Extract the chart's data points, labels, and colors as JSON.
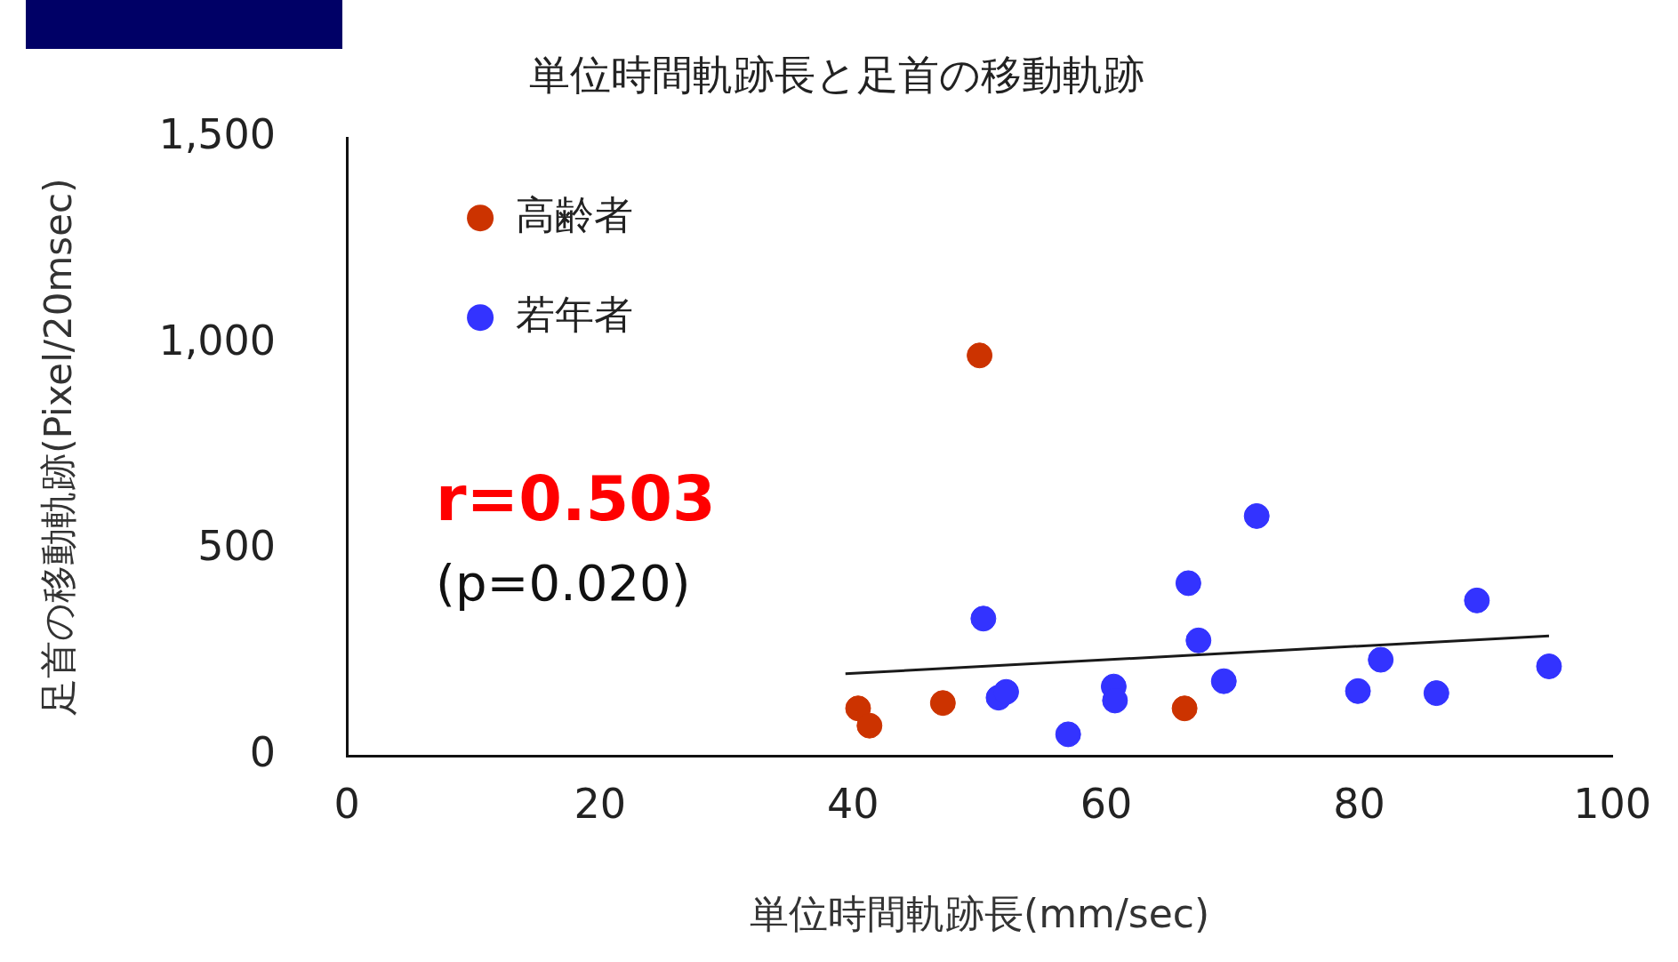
{
  "chart_data": {
    "type": "scatter",
    "title": "単位時間軌跡長と足首の移動軌跡",
    "xlabel": "単位時間軌跡長(mm/sec)",
    "ylabel": "足首の移動軌跡(Pixel/20msec)",
    "xlim": [
      0,
      100
    ],
    "xticks": [
      0,
      20,
      40,
      60,
      80,
      100
    ],
    "ylim": [
      0,
      1500
    ],
    "yticks": [
      {
        "value": 0,
        "label": "0"
      },
      {
        "value": 500,
        "label": "500"
      },
      {
        "value": 1000,
        "label": "1,000"
      },
      {
        "value": 1500,
        "label": "1,500"
      }
    ],
    "grid": false,
    "legend": "top left",
    "marker": "circle",
    "series": [
      {
        "name": "高齢者",
        "color": "#cc3300",
        "x": [
          40.4,
          41.3,
          47.1,
          50.0,
          66.2
        ],
        "values": [
          115,
          73,
          128,
          972,
          115
        ]
      },
      {
        "name": "若年者",
        "color": "#3333ff",
        "x": [
          50.3,
          51.5,
          52.1,
          57.0,
          60.6,
          60.7,
          66.5,
          67.3,
          69.3,
          71.9,
          79.9,
          81.7,
          86.1,
          89.3,
          95.0
        ],
        "values": [
          333,
          141,
          155,
          52,
          168,
          134,
          419,
          280,
          181,
          582,
          157,
          233,
          152,
          377,
          217
        ]
      },
      {
        "type": "line",
        "marker": "none",
        "color": "#1a1a1a",
        "x": [
          39.4,
          95.0
        ],
        "values": [
          199,
          291
        ]
      }
    ],
    "annotations": [
      "r=0.503",
      "(p=0.020)"
    ]
  }
}
